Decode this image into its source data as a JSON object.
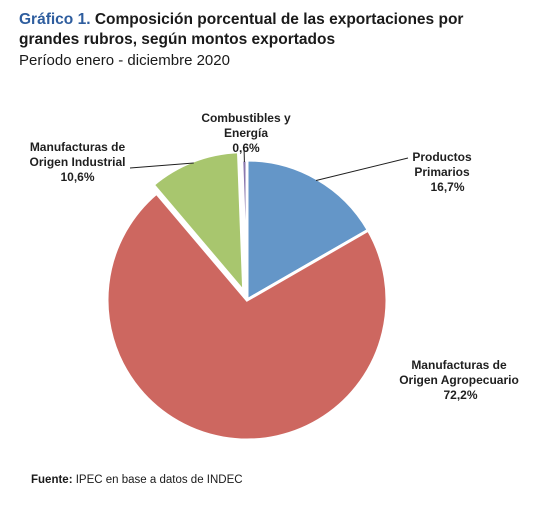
{
  "header": {
    "title_prefix": "Gráfico 1.",
    "title_text": "Composición porcentual de las exportaciones por grandes rubros, según montos exportados",
    "subtitle": "Período enero - diciembre 2020"
  },
  "chart_data": {
    "type": "pie",
    "slices": [
      {
        "label": "Productos Primarios",
        "value": 16.7,
        "value_label": "16,7%",
        "color": "#6496c8"
      },
      {
        "label": "Manufacturas de Origen Agropecuario",
        "value": 72.2,
        "value_label": "72,2%",
        "color": "#cd6760"
      },
      {
        "label": "Manufacturas de Origen Industrial",
        "value": 10.6,
        "value_label": "10,6%",
        "color": "#a8c66e"
      },
      {
        "label": "Combustibles y Energía",
        "value": 0.6,
        "value_label": "0,6%",
        "color": "#8a78ae"
      }
    ]
  },
  "footer": {
    "source_label": "Fuente:",
    "source_text": "IPEC en base a datos de INDEC"
  }
}
